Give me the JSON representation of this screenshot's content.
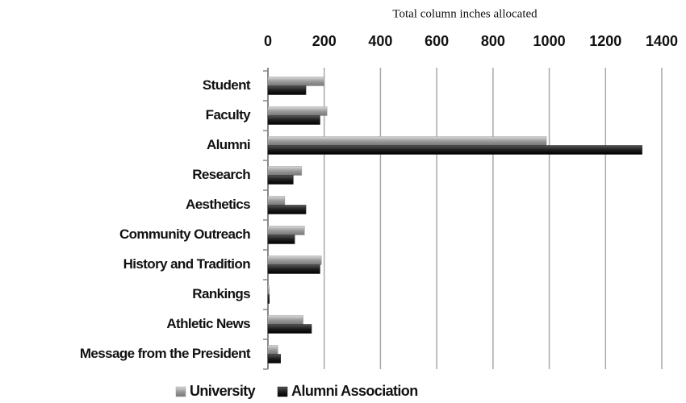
{
  "chart_data": {
    "type": "hbar",
    "title": "Total column inches allocated",
    "categories": [
      "Student",
      "Faculty",
      "Alumni",
      "Research",
      "Aesthetics",
      "Community Outreach",
      "History and Tradition",
      "Rankings",
      "Athletic News",
      "Message from the President"
    ],
    "series": [
      {
        "name": "University",
        "color": "#9a9a9a",
        "values": [
          200,
          210,
          990,
          120,
          60,
          130,
          190,
          5,
          125,
          35
        ]
      },
      {
        "name": "Alumni Association",
        "color": "#1e1e1e",
        "values": [
          135,
          185,
          1330,
          90,
          135,
          95,
          185,
          5,
          155,
          45
        ]
      }
    ],
    "xlim": [
      0,
      1400
    ],
    "xticks": [
      0,
      200,
      400,
      600,
      800,
      1000,
      1200,
      1400
    ],
    "grid": true,
    "legend": "bottom"
  }
}
